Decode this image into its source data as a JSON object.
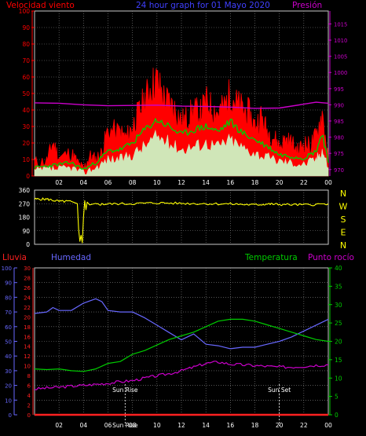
{
  "title": "24 hour graph for 01 Mayo 2020",
  "colors": {
    "background": "#000000",
    "grid": "#8a8a8a",
    "wind_speed": "#ff0000",
    "wind_avg": "#00cc00",
    "wind_low": "#ccffcc",
    "pressure": "#cc00cc",
    "wind_dir": "#ffff00",
    "rain": "#ff2020",
    "humidity": "#6868ff",
    "temperature": "#00cc00",
    "dew_point": "#cc00cc",
    "axis_yellow": "#ffff00",
    "marker": "#ffffff"
  },
  "chart_data": [
    {
      "type": "line",
      "id": "wind_pressure",
      "title": "24 hour graph for 01 Mayo 2020",
      "left_label": "Velocidad viento",
      "right_label": "Presión",
      "left_ticks": [
        "0",
        "10",
        "20",
        "30",
        "40",
        "50",
        "60",
        "70",
        "80",
        "90",
        "100"
      ],
      "right_ticks": [
        "970",
        "975",
        "980",
        "985",
        "990",
        "995",
        "1000",
        "1005",
        "1010",
        "1015"
      ],
      "ylim": [
        0,
        100
      ],
      "y2lim": [
        968,
        1019
      ],
      "xlim": [
        0,
        24
      ],
      "x_ticks": [
        "02",
        "04",
        "06",
        "08",
        "10",
        "12",
        "14",
        "16",
        "18",
        "20",
        "22",
        "00"
      ],
      "x_tick_hours": [
        2,
        4,
        6,
        8,
        10,
        12,
        14,
        16,
        18,
        20,
        22,
        24
      ],
      "series": [
        {
          "key": "gust",
          "x": [
            0,
            1,
            1.5,
            2,
            3,
            3.5,
            4,
            4.5,
            5,
            5.5,
            6,
            7,
            7.5,
            8,
            8.5,
            9,
            9.5,
            10,
            10.5,
            11,
            11.5,
            12,
            12.5,
            13,
            13.5,
            14,
            14.5,
            15,
            15.5,
            16,
            16.5,
            17,
            17.5,
            18,
            18.5,
            19,
            19.5,
            20,
            20.5,
            21,
            21.5,
            22,
            22.5,
            23,
            23.5,
            24
          ],
          "y": [
            8,
            9,
            20,
            11,
            14,
            8,
            4,
            12,
            10,
            14,
            28,
            26,
            23,
            30,
            38,
            46,
            54,
            58,
            48,
            44,
            40,
            33,
            35,
            40,
            37,
            45,
            41,
            38,
            42,
            50,
            44,
            40,
            38,
            30,
            36,
            27,
            24,
            18,
            22,
            20,
            15,
            20,
            18,
            24,
            38,
            10
          ]
        },
        {
          "key": "avg",
          "x": [
            0,
            1,
            2,
            3,
            4,
            5,
            6,
            7,
            8,
            9,
            10,
            11,
            12,
            13,
            14,
            15,
            16,
            17,
            18,
            19,
            20,
            21,
            22,
            23,
            23.5,
            24
          ],
          "y": [
            5,
            6,
            7,
            8,
            4,
            8,
            15,
            16,
            20,
            28,
            34,
            30,
            25,
            28,
            30,
            27,
            33,
            26,
            22,
            18,
            13,
            12,
            11,
            15,
            26,
            8
          ]
        },
        {
          "key": "low",
          "x": [
            0,
            1,
            2,
            3,
            4,
            5,
            6,
            7,
            8,
            9,
            10,
            11,
            12,
            13,
            14,
            15,
            16,
            17,
            18,
            19,
            20,
            21,
            22,
            23,
            23.5,
            24
          ],
          "y": [
            3,
            4,
            4,
            5,
            2,
            5,
            10,
            10,
            13,
            18,
            24,
            20,
            16,
            18,
            20,
            18,
            22,
            17,
            14,
            11,
            9,
            8,
            7,
            10,
            16,
            5
          ]
        },
        {
          "key": "pressure",
          "x": [
            0,
            2,
            4,
            6,
            8,
            10,
            12,
            14,
            16,
            18,
            20,
            22,
            23,
            24
          ],
          "y": [
            990.6,
            990.5,
            990.0,
            989.7,
            989.8,
            989.9,
            989.6,
            989.5,
            989.3,
            988.9,
            989.0,
            990.2,
            990.8,
            990.5
          ]
        }
      ]
    },
    {
      "type": "line",
      "id": "wind_direction",
      "left_ticks": [
        "0",
        "90",
        "180",
        "270",
        "360"
      ],
      "right_labels": [
        "N",
        "W",
        "S",
        "E",
        "N"
      ],
      "ylim": [
        0,
        360
      ],
      "xlim": [
        0,
        24
      ],
      "series": [
        {
          "key": "direction",
          "x": [
            0,
            1,
            2,
            3,
            3.5,
            3.6,
            3.7,
            3.8,
            3.9,
            4.0,
            4.1,
            4.2,
            4.3,
            4.5,
            5,
            6,
            8,
            10,
            12,
            14,
            16,
            18,
            19,
            20,
            22,
            24
          ],
          "y": [
            300,
            300,
            285,
            285,
            270,
            100,
            20,
            60,
            10,
            180,
            290,
            230,
            280,
            262,
            265,
            268,
            270,
            275,
            272,
            270,
            268,
            262,
            268,
            265,
            262,
            268
          ]
        }
      ]
    },
    {
      "type": "line",
      "id": "rain_humidity_temp",
      "labels": {
        "rain": "Lluvia",
        "humidity": "Humedad",
        "temperature": "Temperatura",
        "dew_point": "Punto rocío"
      },
      "humidity_ticks": [
        "0",
        "10",
        "20",
        "30",
        "40",
        "50",
        "60",
        "70",
        "80",
        "90",
        "100"
      ],
      "rain_ticks": [
        "0",
        "2",
        "4",
        "6",
        "8",
        "10",
        "12",
        "14",
        "16",
        "18",
        "20",
        "22",
        "24",
        "26",
        "28",
        "30"
      ],
      "temp_ticks": [
        "0",
        "5",
        "10",
        "15",
        "20",
        "25",
        "30",
        "35",
        "40"
      ],
      "ylim": [
        0,
        100
      ],
      "y2lim": [
        0,
        40
      ],
      "xlim": [
        0,
        24
      ],
      "sun_rise_label": "Sun Rise",
      "sun_set_label": "Sun Set",
      "sun_rise_hour": 7.4,
      "sun_set_hour": 20.0,
      "series": [
        {
          "key": "humidity",
          "x": [
            0,
            1,
            1.5,
            2,
            3,
            4,
            5,
            5.5,
            6,
            7,
            8,
            9,
            10,
            11,
            12,
            13,
            14,
            15,
            16,
            17,
            18,
            19,
            20,
            21,
            22,
            23,
            24
          ],
          "y": [
            69,
            70,
            73,
            71,
            71,
            76,
            79,
            77,
            71,
            70,
            70,
            66,
            61,
            56,
            51,
            55,
            48,
            47,
            45,
            46,
            46,
            48,
            50,
            53,
            57,
            61,
            65
          ]
        },
        {
          "key": "temperature",
          "x": [
            0,
            1,
            2,
            3,
            4,
            5,
            6,
            7,
            8,
            9,
            10,
            11,
            12,
            13,
            14,
            15,
            16,
            17,
            18,
            19,
            20,
            21,
            22,
            23,
            24
          ],
          "y": [
            12.5,
            12.3,
            12.5,
            12.0,
            11.8,
            12.5,
            14.0,
            14.5,
            16.5,
            17.5,
            19.0,
            20.5,
            21.5,
            22.5,
            24.0,
            25.5,
            26.0,
            26.0,
            25.5,
            24.5,
            23.5,
            22.5,
            21.5,
            20.5,
            20.0
          ]
        },
        {
          "key": "dew_point",
          "x": [
            0,
            1,
            2,
            3,
            4,
            5,
            6,
            7,
            8,
            9,
            10,
            11,
            12,
            13,
            14,
            15,
            16,
            17,
            18,
            19,
            20,
            21,
            22,
            23,
            24
          ],
          "y": [
            7.0,
            7.3,
            7.5,
            7.8,
            8.0,
            8.3,
            8.6,
            9.0,
            9.3,
            10.0,
            10.6,
            11.2,
            12.0,
            13.0,
            14.0,
            14.4,
            13.8,
            13.6,
            13.4,
            13.2,
            13.0,
            13.0,
            13.2,
            13.5,
            13.6
          ]
        },
        {
          "key": "rain",
          "x": [
            0,
            24
          ],
          "y": [
            0,
            0
          ]
        }
      ]
    }
  ]
}
